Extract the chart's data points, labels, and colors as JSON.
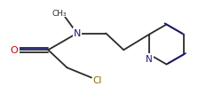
{
  "bg_color": "#ffffff",
  "bond_color": "#2a2a2a",
  "double_bond_color": "#1a1a7a",
  "atom_colors": {
    "O": "#cc0000",
    "N": "#1a1a7a",
    "Cl": "#8b6600",
    "C": "#2a2a2a"
  },
  "figsize": [
    2.51,
    1.16
  ],
  "dpi": 100
}
